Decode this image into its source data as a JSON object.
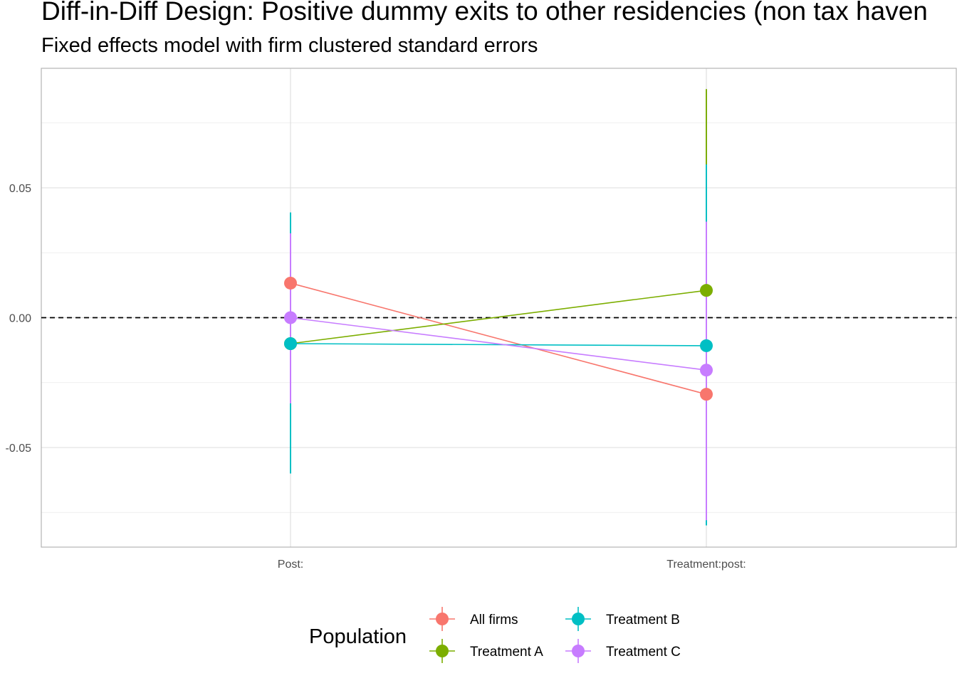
{
  "title": "Diff-in-Diff Design: Positive dummy exits to other residencies (non tax haven",
  "subtitle": "Fixed effects model with firm clustered standard errors",
  "chart_data": {
    "type": "scatter",
    "categories": [
      "Post:",
      "Treatment:post:"
    ],
    "ylim": [
      -0.088,
      0.096
    ],
    "yticks": [
      -0.05,
      0.0,
      0.05
    ],
    "ytick_labels": [
      "-0.05",
      "0.00",
      "0.05"
    ],
    "grid": true,
    "reference_line": {
      "y": 0,
      "style": "dashed",
      "color": "#000000"
    },
    "legend": {
      "title": "Population",
      "placement": "bottom"
    },
    "series": [
      {
        "name": "All firms",
        "color": "#F8766D",
        "values": [
          0.0133,
          -0.0295
        ],
        "lower": [
          0.0133,
          -0.0295
        ],
        "upper": [
          0.0133,
          -0.0295
        ]
      },
      {
        "name": "Treatment A",
        "color": "#7CAE00",
        "values": [
          -0.01,
          0.0105
        ],
        "lower": [
          -0.01,
          -0.066
        ],
        "upper": [
          -0.01,
          0.088
        ]
      },
      {
        "name": "Treatment B",
        "color": "#00BFC4",
        "values": [
          -0.01,
          -0.0108
        ],
        "lower": [
          -0.06,
          -0.08
        ],
        "upper": [
          0.0405,
          0.059
        ]
      },
      {
        "name": "Treatment C",
        "color": "#C77CFF",
        "values": [
          0.0,
          -0.0202
        ],
        "lower": [
          -0.033,
          -0.078
        ],
        "upper": [
          0.0325,
          0.037
        ]
      }
    ]
  }
}
